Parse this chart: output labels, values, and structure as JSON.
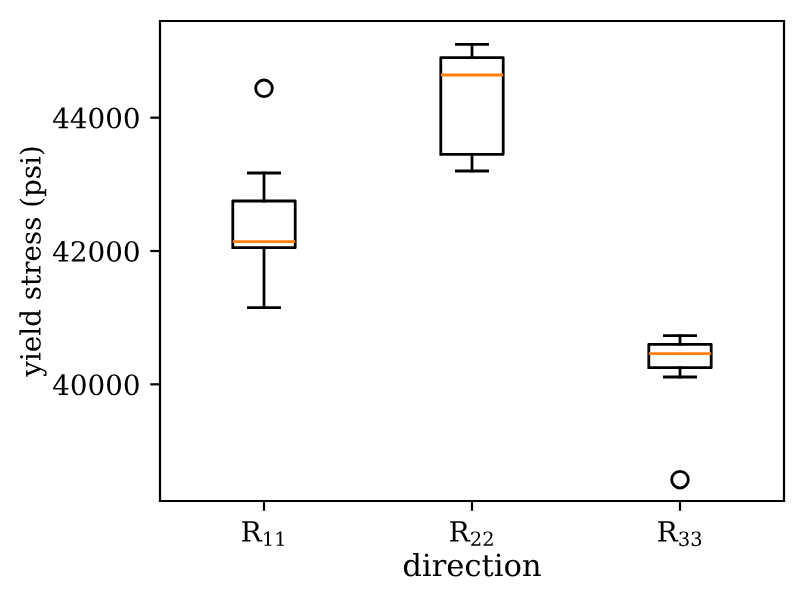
{
  "chart_data": {
    "type": "box",
    "xlabel": "direction",
    "ylabel": "yield stress (psi)",
    "categories": [
      "R$_{11}$",
      "R$_{22}$",
      "R$_{33}$"
    ],
    "boxes": [
      {
        "low": 41150,
        "q1": 42050,
        "median": 42140,
        "q3": 42750,
        "high": 43170,
        "outliers": [
          44440
        ]
      },
      {
        "low": 43200,
        "q1": 43450,
        "median": 44640,
        "q3": 44900,
        "high": 45100
      },
      {
        "low": 40110,
        "q1": 40250,
        "median": 40460,
        "q3": 40600,
        "high": 40730,
        "outliers": [
          38570
        ]
      }
    ],
    "color": "#000000",
    "ylim": [
      38250,
      45450
    ],
    "yticks": [
      40000,
      42000,
      44000
    ],
    "grid": false
  }
}
